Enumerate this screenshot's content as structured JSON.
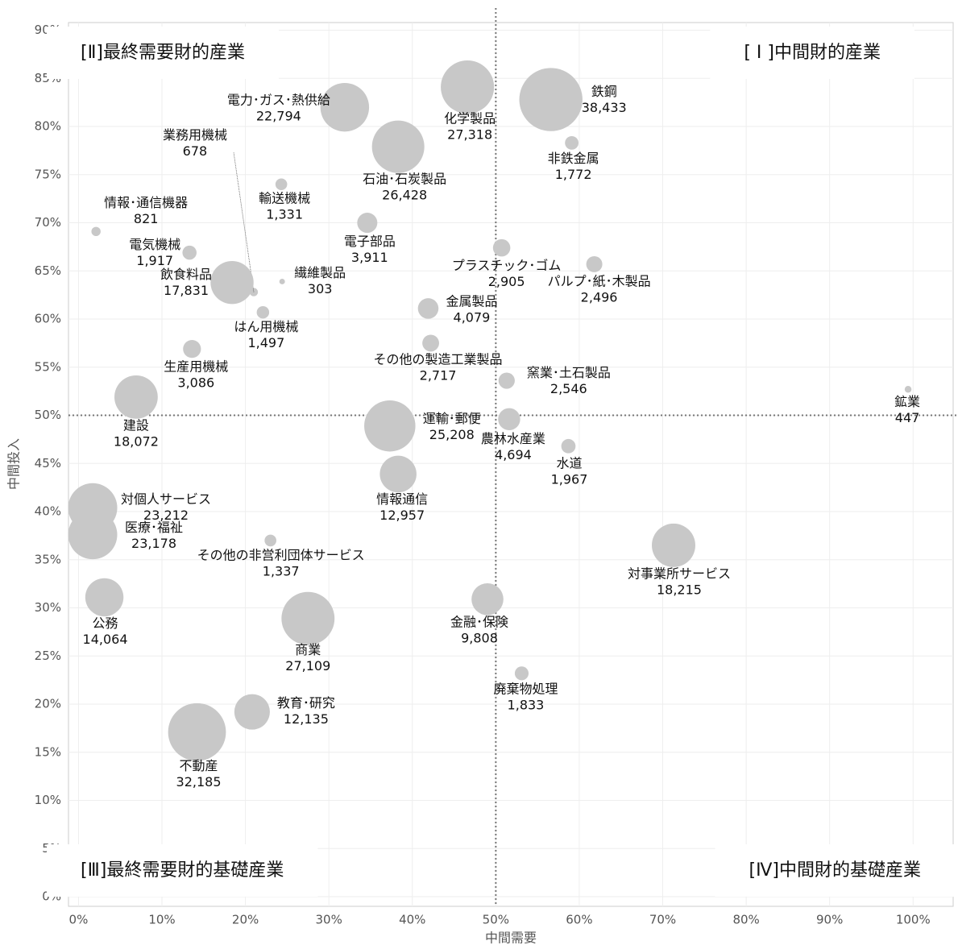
{
  "chart_data": {
    "type": "scatter",
    "xlabel": "中間需要",
    "ylabel": "中間投入",
    "xlim": [
      -1.2,
      104.8
    ],
    "ylim": [
      -1,
      90.8
    ],
    "xticks": [
      {
        "value": 0,
        "label": "0%"
      },
      {
        "value": 10,
        "label": "10%"
      },
      {
        "value": 20,
        "label": "20%"
      },
      {
        "value": 30,
        "label": "30%"
      },
      {
        "value": 40,
        "label": "40%"
      },
      {
        "value": 50,
        "label": "50%"
      },
      {
        "value": 60,
        "label": "60%"
      },
      {
        "value": 70,
        "label": "70%"
      },
      {
        "value": 80,
        "label": "80%"
      },
      {
        "value": 90,
        "label": "90%"
      },
      {
        "value": 100,
        "label": "100%"
      }
    ],
    "yticks": [
      {
        "value": 0,
        "label": "0%"
      },
      {
        "value": 5,
        "label": "5%"
      },
      {
        "value": 10,
        "label": "10%"
      },
      {
        "value": 15,
        "label": "15%"
      },
      {
        "value": 20,
        "label": "20%"
      },
      {
        "value": 25,
        "label": "25%"
      },
      {
        "value": 30,
        "label": "30%"
      },
      {
        "value": 35,
        "label": "35%"
      },
      {
        "value": 40,
        "label": "40%"
      },
      {
        "value": 45,
        "label": "45%"
      },
      {
        "value": 50,
        "label": "50%"
      },
      {
        "value": 55,
        "label": "55%"
      },
      {
        "value": 60,
        "label": "60%"
      },
      {
        "value": 65,
        "label": "65%"
      },
      {
        "value": 70,
        "label": "70%"
      },
      {
        "value": 75,
        "label": "75%"
      },
      {
        "value": 80,
        "label": "80%"
      },
      {
        "value": 85,
        "label": "85%"
      },
      {
        "value": 90,
        "label": "90%"
      }
    ],
    "grid": true,
    "xref": 50,
    "yref": 50,
    "color": "#c8c8c8",
    "annotations": [
      {
        "text": "[Ⅱ]最終需要財的産業",
        "position": "top-left"
      },
      {
        "text": "[ Ⅰ ]中間財的産業",
        "position": "top-right"
      },
      {
        "text": "[Ⅲ]最終需要財的基礎産業",
        "position": "bottom-left"
      },
      {
        "text": "[Ⅳ]中間財的基礎産業",
        "position": "bottom-right"
      }
    ],
    "labels": [
      "鉄鋼",
      "化学製品",
      "電力･ガス･熱供給",
      "石油･石炭製品",
      "非鉄金属",
      "業務用機械",
      "輸送機械",
      "情報･通信機器",
      "電子部品",
      "電気機械",
      "飲食料品",
      "繊維製品",
      "プラスチック･ゴム",
      "パルプ･紙･木製品",
      "金属製品",
      "はん用機械",
      "その他の製造工業製品",
      "生産用機械",
      "窯業･土石製品",
      "鉱業",
      "建設",
      "運輸･郵便",
      "農林水産業",
      "水道",
      "情報通信",
      "対個人サービス",
      "医療･福祉",
      "その他の非営利団体サービス",
      "対事業所サービス",
      "公務",
      "商業",
      "金融･保険",
      "廃棄物処理",
      "教育･研究",
      "不動産"
    ],
    "x": [
      56.6,
      46.6,
      31.9,
      38.3,
      59.1,
      21.0,
      24.3,
      2.1,
      34.6,
      13.3,
      18.4,
      24.4,
      50.7,
      61.8,
      41.9,
      22.1,
      42.2,
      13.6,
      51.3,
      99.4,
      6.9,
      37.3,
      51.6,
      58.7,
      38.3,
      1.7,
      1.7,
      23.0,
      71.3,
      3.1,
      27.5,
      49.0,
      53.1,
      20.8,
      14.2
    ],
    "values": [
      82.8,
      84.1,
      82.0,
      77.9,
      78.3,
      62.8,
      74.0,
      69.1,
      70.0,
      66.9,
      63.8,
      63.9,
      67.4,
      65.7,
      61.1,
      60.7,
      57.5,
      56.9,
      53.6,
      52.7,
      51.9,
      48.9,
      49.6,
      46.8,
      43.9,
      40.4,
      37.6,
      37.0,
      36.5,
      31.1,
      28.9,
      30.9,
      23.2,
      19.2,
      17.1
    ],
    "sizes": [
      38433,
      27318,
      22794,
      26428,
      1772,
      678,
      1331,
      821,
      3911,
      1917,
      17831,
      303,
      2905,
      2496,
      4079,
      1497,
      2717,
      3086,
      2546,
      447,
      18072,
      25208,
      4694,
      1967,
      12957,
      23212,
      23178,
      1337,
      18215,
      14064,
      27109,
      9808,
      1833,
      12135,
      32185
    ],
    "size_labels": [
      "38,433",
      "27,318",
      "22,794",
      "26,428",
      "1,772",
      "678",
      "1,331",
      "821",
      "3,911",
      "1,917",
      "17,831",
      "303",
      "2,905",
      "2,496",
      "4,079",
      "1,497",
      "2,717",
      "3,086",
      "2,546",
      "447",
      "18,072",
      "25,208",
      "4,694",
      "1,967",
      "12,957",
      "23,212",
      "23,178",
      "1,337",
      "18,215",
      "14,064",
      "27,109",
      "9,808",
      "1,833",
      "12,135",
      "32,185"
    ]
  }
}
